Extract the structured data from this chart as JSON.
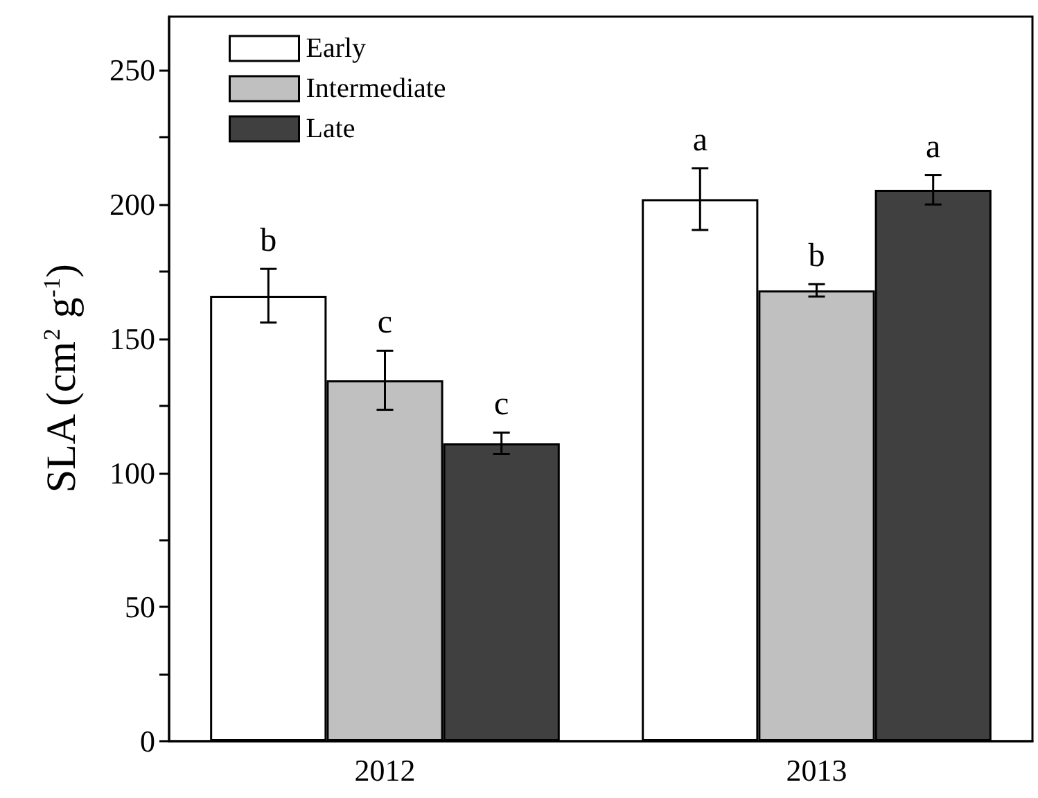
{
  "chart_data": {
    "type": "bar",
    "ylabel": "SLA (cm$^{2}$ g$^{-1}$)",
    "categories": [
      "2012",
      "2013"
    ],
    "series": [
      {
        "name": "Early",
        "color": "#ffffff",
        "values": [
          166,
          202
        ],
        "errors": [
          10,
          11.5
        ],
        "value_labels": [
          "b",
          "a"
        ]
      },
      {
        "name": "Intermediate",
        "color": "#c0c0c0",
        "values": [
          134.5,
          168
        ],
        "errors": [
          11,
          2.3
        ],
        "value_labels": [
          "c",
          "b"
        ]
      },
      {
        "name": "Late",
        "color": "#404040",
        "values": [
          111,
          205.5
        ],
        "errors": [
          4,
          5.5
        ],
        "value_labels": [
          "c",
          "a"
        ]
      }
    ],
    "ylim": [
      0,
      270
    ],
    "yticks": [
      0,
      50,
      100,
      150,
      200,
      250
    ],
    "grid": false,
    "legend": "top left"
  }
}
